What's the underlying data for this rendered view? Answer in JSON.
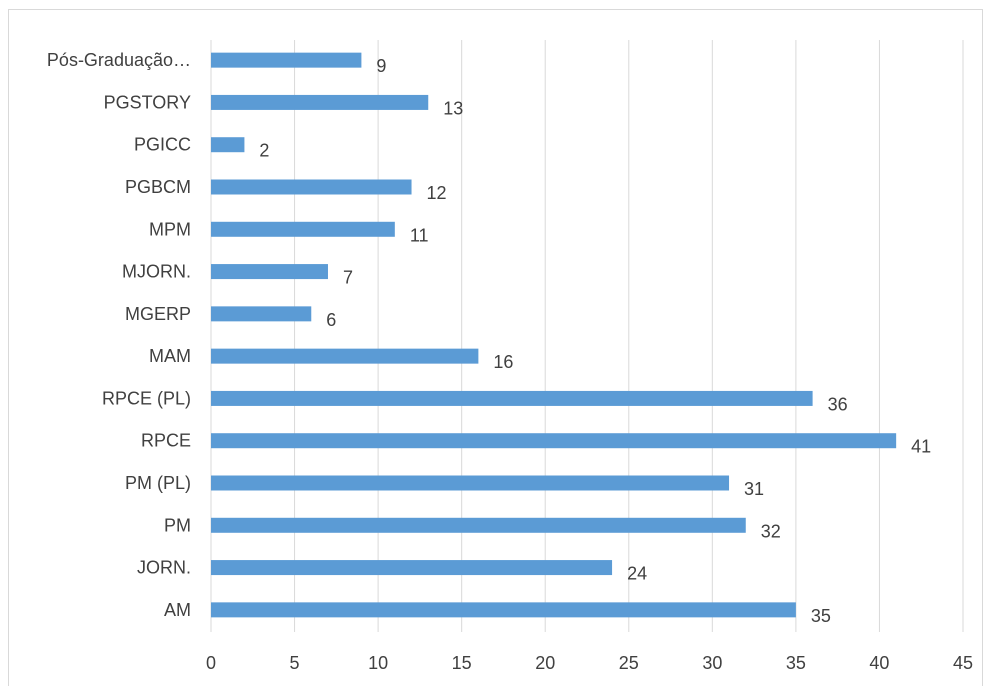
{
  "chart_data": {
    "type": "bar",
    "orientation": "horizontal",
    "categories": [
      "AM",
      "JORN.",
      "PM",
      "PM (PL)",
      "RPCE",
      "RPCE (PL)",
      "MAM",
      "MGERP",
      "MJORN.",
      "MPM",
      "PGBCM",
      "PGICC",
      "PGSTORY",
      "Pós-Graduação…"
    ],
    "values": [
      35,
      24,
      32,
      31,
      41,
      36,
      16,
      6,
      7,
      11,
      12,
      2,
      13,
      9
    ],
    "xlim": [
      0,
      45
    ],
    "xticks": [
      0,
      5,
      10,
      15,
      20,
      25,
      30,
      35,
      40,
      45
    ],
    "grid": true,
    "data_labels": true,
    "title": "",
    "xlabel": "",
    "ylabel": "",
    "bar_color": "#5b9bd5",
    "grid_color": "#d9d9d9",
    "text_color": "#404040"
  }
}
